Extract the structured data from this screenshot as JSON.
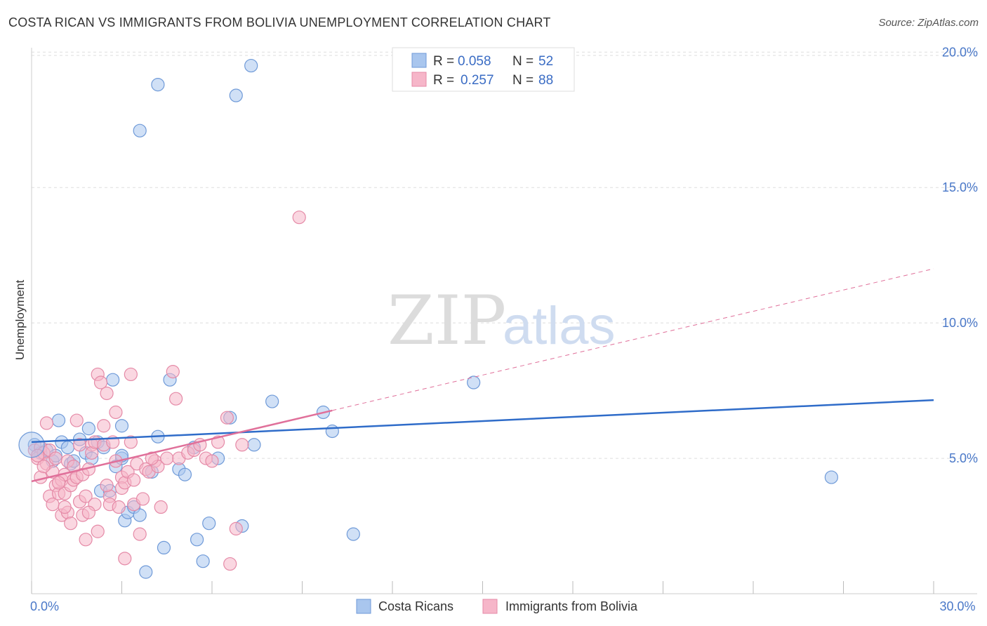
{
  "header": {
    "title": "COSTA RICAN VS IMMIGRANTS FROM BOLIVIA UNEMPLOYMENT CORRELATION CHART",
    "source": "Source: ZipAtlas.com"
  },
  "watermark": {
    "zip": "ZIP",
    "atlas": "atlas"
  },
  "legend": {
    "rows": [
      {
        "r_label": "R =",
        "r_value": "0.058",
        "n_label": "N =",
        "n_value": "52"
      },
      {
        "r_label": "R =",
        "r_value": "0.257",
        "n_label": "N =",
        "n_value": "88"
      }
    ]
  },
  "bottom_legend": {
    "series1": "Costa Ricans",
    "series2": "Immigrants from Bolivia"
  },
  "colors": {
    "blue_fill": "#a9c6ee",
    "blue_stroke": "#6f9ad8",
    "blue_line": "#2f6cc9",
    "pink_fill": "#f6b6c9",
    "pink_stroke": "#e58aa7",
    "pink_line": "#e0709a",
    "grid": "#dddddd"
  },
  "chart_data": {
    "type": "scatter",
    "title": "COSTA RICAN VS IMMIGRANTS FROM BOLIVIA UNEMPLOYMENT CORRELATION CHART",
    "xlabel": "",
    "ylabel": "Unemployment",
    "xlim": [
      0,
      30
    ],
    "ylim": [
      0,
      20.5
    ],
    "y_ticks": [
      {
        "value": 5,
        "label": "5.0%"
      },
      {
        "value": 10,
        "label": "10.0%"
      },
      {
        "value": 15,
        "label": "15.0%"
      },
      {
        "value": 20,
        "label": "20.0%"
      }
    ],
    "x_tick_values": [
      0,
      3,
      6,
      9,
      12,
      15,
      18,
      21,
      24,
      27,
      30
    ],
    "x_tick_labels": [
      {
        "value": 0,
        "label": "0.0%"
      },
      {
        "value": 30,
        "label": "30.0%"
      }
    ],
    "series": [
      {
        "name": "Costa Ricans",
        "color": "#a9c6ee",
        "R": 0.058,
        "N": 52,
        "trend": {
          "x": [
            0,
            30
          ],
          "y": [
            5.6,
            7.15
          ],
          "dashed_from": null
        },
        "points": [
          [
            0.1,
            5.5
          ],
          [
            0.3,
            5.2
          ],
          [
            0.5,
            5.3
          ],
          [
            0.7,
            4.9
          ],
          [
            0.8,
            5.1
          ],
          [
            0.9,
            6.4
          ],
          [
            1.0,
            5.6
          ],
          [
            1.2,
            5.4
          ],
          [
            1.3,
            4.8
          ],
          [
            1.4,
            4.9
          ],
          [
            1.6,
            5.7
          ],
          [
            1.8,
            5.2
          ],
          [
            1.9,
            6.1
          ],
          [
            2.0,
            5.0
          ],
          [
            2.2,
            5.6
          ],
          [
            2.3,
            3.8
          ],
          [
            2.4,
            5.4
          ],
          [
            2.6,
            3.8
          ],
          [
            2.7,
            7.9
          ],
          [
            2.8,
            4.7
          ],
          [
            3.0,
            5.0
          ],
          [
            3.0,
            6.2
          ],
          [
            3.1,
            2.7
          ],
          [
            3.2,
            3.0
          ],
          [
            3.4,
            3.2
          ],
          [
            3.6,
            2.9
          ],
          [
            3.6,
            17.1
          ],
          [
            3.8,
            0.8
          ],
          [
            4.0,
            4.5
          ],
          [
            4.2,
            5.8
          ],
          [
            4.2,
            18.8
          ],
          [
            4.4,
            1.7
          ],
          [
            4.6,
            7.9
          ],
          [
            4.9,
            4.6
          ],
          [
            5.1,
            4.4
          ],
          [
            5.4,
            5.4
          ],
          [
            5.5,
            2.0
          ],
          [
            5.7,
            1.2
          ],
          [
            5.9,
            2.6
          ],
          [
            6.2,
            5.0
          ],
          [
            6.6,
            6.5
          ],
          [
            6.8,
            18.4
          ],
          [
            7.0,
            2.5
          ],
          [
            7.3,
            19.5
          ],
          [
            7.4,
            5.5
          ],
          [
            8.0,
            7.1
          ],
          [
            9.7,
            6.7
          ],
          [
            10.0,
            6.0
          ],
          [
            10.7,
            2.2
          ],
          [
            14.7,
            7.8
          ],
          [
            26.6,
            4.3
          ],
          [
            3.0,
            5.1
          ]
        ]
      },
      {
        "name": "Immigrants from Bolivia",
        "color": "#f6b6c9",
        "R": 0.257,
        "N": 88,
        "trend": {
          "x": [
            0,
            30
          ],
          "y": [
            4.15,
            12.0
          ],
          "solid_until": 10
        },
        "points": [
          [
            0.1,
            5.3
          ],
          [
            0.2,
            5.0
          ],
          [
            0.3,
            5.4
          ],
          [
            0.3,
            4.3
          ],
          [
            0.4,
            5.2
          ],
          [
            0.5,
            4.8
          ],
          [
            0.5,
            6.3
          ],
          [
            0.6,
            3.6
          ],
          [
            0.6,
            5.3
          ],
          [
            0.7,
            3.3
          ],
          [
            0.7,
            4.5
          ],
          [
            0.8,
            4.0
          ],
          [
            0.8,
            5.0
          ],
          [
            0.9,
            3.7
          ],
          [
            1.0,
            4.2
          ],
          [
            1.0,
            2.9
          ],
          [
            1.1,
            4.4
          ],
          [
            1.1,
            3.7
          ],
          [
            1.2,
            4.9
          ],
          [
            1.2,
            3.0
          ],
          [
            1.3,
            4.0
          ],
          [
            1.3,
            2.6
          ],
          [
            1.4,
            4.2
          ],
          [
            1.4,
            4.7
          ],
          [
            1.5,
            4.3
          ],
          [
            1.5,
            6.4
          ],
          [
            1.6,
            3.4
          ],
          [
            1.6,
            5.5
          ],
          [
            1.7,
            4.4
          ],
          [
            1.7,
            2.9
          ],
          [
            1.8,
            3.6
          ],
          [
            1.8,
            2.0
          ],
          [
            1.9,
            4.6
          ],
          [
            2.0,
            5.5
          ],
          [
            2.0,
            5.2
          ],
          [
            2.1,
            5.6
          ],
          [
            2.1,
            3.3
          ],
          [
            2.2,
            8.1
          ],
          [
            2.2,
            2.3
          ],
          [
            2.3,
            7.8
          ],
          [
            2.4,
            5.5
          ],
          [
            2.4,
            6.2
          ],
          [
            2.5,
            7.4
          ],
          [
            2.6,
            3.6
          ],
          [
            2.6,
            3.3
          ],
          [
            2.7,
            5.6
          ],
          [
            2.8,
            4.9
          ],
          [
            2.8,
            6.7
          ],
          [
            2.9,
            3.2
          ],
          [
            3.0,
            4.3
          ],
          [
            3.0,
            3.9
          ],
          [
            3.1,
            4.1
          ],
          [
            3.1,
            1.3
          ],
          [
            3.2,
            4.5
          ],
          [
            3.3,
            5.6
          ],
          [
            3.3,
            8.1
          ],
          [
            3.4,
            3.3
          ],
          [
            3.5,
            4.8
          ],
          [
            3.6,
            2.2
          ],
          [
            3.7,
            3.5
          ],
          [
            3.8,
            4.6
          ],
          [
            3.9,
            4.5
          ],
          [
            4.1,
            4.9
          ],
          [
            4.2,
            4.7
          ],
          [
            4.3,
            3.2
          ],
          [
            4.5,
            5.0
          ],
          [
            4.7,
            8.2
          ],
          [
            4.8,
            7.2
          ],
          [
            4.9,
            5.0
          ],
          [
            5.2,
            5.2
          ],
          [
            5.4,
            5.3
          ],
          [
            5.6,
            5.5
          ],
          [
            5.8,
            5.0
          ],
          [
            6.0,
            4.9
          ],
          [
            6.2,
            5.6
          ],
          [
            6.5,
            6.5
          ],
          [
            6.6,
            1.1
          ],
          [
            6.8,
            2.4
          ],
          [
            7.0,
            5.5
          ],
          [
            8.9,
            13.9
          ],
          [
            0.2,
            5.1
          ],
          [
            0.4,
            4.7
          ],
          [
            0.9,
            4.1
          ],
          [
            1.1,
            3.2
          ],
          [
            1.9,
            3.0
          ],
          [
            2.5,
            4.0
          ],
          [
            3.4,
            4.2
          ],
          [
            4.0,
            5.0
          ]
        ]
      }
    ]
  }
}
